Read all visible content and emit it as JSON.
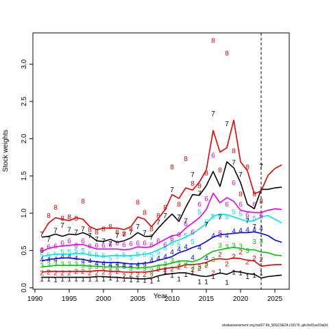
{
  "chart_data": {
    "type": "line",
    "title": "",
    "xlabel": "Year",
    "ylabel": "Stock weights",
    "xlim": [
      1989.7,
      2027.1
    ],
    "ylim": [
      -0.02,
      3.42
    ],
    "x_ticks": [
      1990,
      1995,
      2000,
      2005,
      2010,
      2015,
      2020,
      2025
    ],
    "y_ticks": [
      0.0,
      0.5,
      1.0,
      1.5,
      2.0,
      2.5,
      3.0
    ],
    "grid": false,
    "legend": "none",
    "vline_x": 2023,
    "footer": "stockassessment.org,had27.6b_WGCSE24,r18176.,gitc9c81ac53a0d",
    "series": [
      {
        "label": "1",
        "color": "#000000",
        "fit_x": [
          1991,
          1992,
          1993,
          1994,
          1995,
          1996,
          1997,
          1998,
          1999,
          2000,
          2001,
          2002,
          2003,
          2004,
          2005,
          2006,
          2007,
          2008,
          2009,
          2010,
          2011,
          2012,
          2013,
          2014,
          2015,
          2016,
          2017,
          2018,
          2019,
          2020,
          2021,
          2022,
          2023,
          2024,
          2025,
          2026
        ],
        "fit_y": [
          0.14,
          0.14,
          0.14,
          0.14,
          0.14,
          0.14,
          0.14,
          0.14,
          0.15,
          0.15,
          0.14,
          0.14,
          0.13,
          0.13,
          0.12,
          0.12,
          0.13,
          0.16,
          0.18,
          0.19,
          0.2,
          0.2,
          0.18,
          0.16,
          0.15,
          0.17,
          0.2,
          0.18,
          0.22,
          0.21,
          0.19,
          0.18,
          0.13,
          0.15,
          0.16,
          0.17
        ],
        "obs_x": [
          1991,
          1992,
          1993,
          1994,
          1995,
          1996,
          1997,
          1998,
          1999,
          2000,
          2001,
          2002,
          2003,
          2004,
          2005,
          2006,
          2007,
          2008,
          2009,
          2010,
          2011,
          2012,
          2013,
          2014,
          2015,
          2016,
          2017,
          2018,
          2019,
          2020,
          2021,
          2022,
          2023
        ],
        "obs_y": [
          0.12,
          0.12,
          0.11,
          0.12,
          0.12,
          0.12,
          0.12,
          0.12,
          0.12,
          0.12,
          0.13,
          0.12,
          0.12,
          0.11,
          0.11,
          0.1,
          0.09,
          0.12,
          0.22,
          0.17,
          0.12,
          0.18,
          0.2,
          0.08,
          0.08,
          0.15,
          0.22,
          0.07,
          0.21,
          0.2,
          0.15,
          0.17,
          0.2
        ]
      },
      {
        "label": "2",
        "color": "#e00000",
        "fit_x": [
          1991,
          1992,
          1993,
          1994,
          1995,
          1996,
          1997,
          1998,
          1999,
          2000,
          2001,
          2002,
          2003,
          2004,
          2005,
          2006,
          2007,
          2008,
          2009,
          2010,
          2011,
          2012,
          2013,
          2014,
          2015,
          2016,
          2017,
          2018,
          2019,
          2020,
          2021,
          2022,
          2023,
          2024,
          2025,
          2026
        ],
        "fit_y": [
          0.21,
          0.22,
          0.22,
          0.22,
          0.22,
          0.22,
          0.22,
          0.22,
          0.23,
          0.23,
          0.22,
          0.22,
          0.21,
          0.21,
          0.21,
          0.21,
          0.22,
          0.24,
          0.26,
          0.27,
          0.28,
          0.31,
          0.31,
          0.32,
          0.34,
          0.38,
          0.39,
          0.38,
          0.4,
          0.39,
          0.37,
          0.36,
          0.29,
          0.3,
          0.31,
          0.31
        ],
        "obs_x": [
          1991,
          1992,
          1993,
          1994,
          1995,
          1996,
          1997,
          1998,
          1999,
          2000,
          2001,
          2002,
          2003,
          2004,
          2005,
          2006,
          2007,
          2008,
          2009,
          2010,
          2011,
          2012,
          2013,
          2014,
          2015,
          2016,
          2017,
          2018,
          2019,
          2020,
          2021,
          2022,
          2023
        ],
        "obs_y": [
          0.2,
          0.21,
          0.2,
          0.2,
          0.2,
          0.22,
          0.22,
          0.2,
          0.2,
          0.21,
          0.21,
          0.22,
          0.16,
          0.18,
          0.18,
          0.18,
          0.16,
          0.25,
          0.24,
          0.25,
          0.28,
          0.3,
          0.24,
          0.26,
          0.3,
          0.2,
          0.45,
          0.32,
          0.42,
          0.48,
          0.35,
          0.4,
          0.38
        ]
      },
      {
        "label": "3",
        "color": "#00c000",
        "fit_x": [
          1991,
          1992,
          1993,
          1994,
          1995,
          1996,
          1997,
          1998,
          1999,
          2000,
          2001,
          2002,
          2003,
          2004,
          2005,
          2006,
          2007,
          2008,
          2009,
          2010,
          2011,
          2012,
          2013,
          2014,
          2015,
          2016,
          2017,
          2018,
          2019,
          2020,
          2021,
          2022,
          2023,
          2024,
          2025,
          2026
        ],
        "fit_y": [
          0.28,
          0.29,
          0.3,
          0.3,
          0.3,
          0.3,
          0.3,
          0.29,
          0.29,
          0.28,
          0.28,
          0.28,
          0.28,
          0.27,
          0.27,
          0.27,
          0.28,
          0.3,
          0.31,
          0.33,
          0.36,
          0.36,
          0.35,
          0.38,
          0.44,
          0.49,
          0.51,
          0.53,
          0.54,
          0.53,
          0.51,
          0.51,
          0.48,
          0.47,
          0.44,
          0.43
        ],
        "obs_x": [
          1991,
          1992,
          1993,
          1994,
          1995,
          1996,
          1997,
          1998,
          1999,
          2000,
          2001,
          2002,
          2003,
          2004,
          2005,
          2006,
          2007,
          2008,
          2009,
          2010,
          2011,
          2012,
          2013,
          2014,
          2015,
          2016,
          2017,
          2018,
          2019,
          2020,
          2021,
          2022,
          2023
        ],
        "obs_y": [
          0.3,
          0.31,
          0.32,
          0.32,
          0.32,
          0.32,
          0.3,
          0.28,
          0.29,
          0.28,
          0.28,
          0.29,
          0.29,
          0.26,
          0.28,
          0.26,
          0.23,
          0.28,
          0.32,
          0.37,
          0.32,
          0.33,
          0.28,
          0.28,
          0.32,
          0.38,
          0.57,
          0.55,
          0.57,
          0.56,
          0.5,
          0.62,
          0.63
        ]
      },
      {
        "label": "4",
        "color": "#0000e0",
        "fit_x": [
          1991,
          1992,
          1993,
          1994,
          1995,
          1996,
          1997,
          1998,
          1999,
          2000,
          2001,
          2002,
          2003,
          2004,
          2005,
          2006,
          2007,
          2008,
          2009,
          2010,
          2011,
          2012,
          2013,
          2014,
          2015,
          2016,
          2017,
          2018,
          2019,
          2020,
          2021,
          2022,
          2023,
          2024,
          2025,
          2026
        ],
        "fit_y": [
          0.36,
          0.38,
          0.39,
          0.4,
          0.4,
          0.39,
          0.38,
          0.36,
          0.35,
          0.34,
          0.34,
          0.34,
          0.33,
          0.32,
          0.32,
          0.33,
          0.34,
          0.37,
          0.39,
          0.42,
          0.47,
          0.5,
          0.54,
          0.57,
          0.62,
          0.68,
          0.71,
          0.72,
          0.73,
          0.74,
          0.74,
          0.75,
          0.73,
          0.7,
          0.64,
          0.61
        ],
        "obs_x": [
          1991,
          1992,
          1993,
          1994,
          1995,
          1996,
          1997,
          1998,
          1999,
          2000,
          2001,
          2002,
          2003,
          2004,
          2005,
          2006,
          2007,
          2008,
          2009,
          2010,
          2011,
          2012,
          2013,
          2014,
          2015,
          2016,
          2017,
          2018,
          2019,
          2020,
          2021,
          2022,
          2023
        ],
        "obs_y": [
          0.38,
          0.38,
          0.38,
          0.42,
          0.42,
          0.4,
          0.36,
          0.36,
          0.33,
          0.33,
          0.31,
          0.32,
          0.3,
          0.3,
          0.31,
          0.32,
          0.37,
          0.4,
          0.42,
          0.48,
          0.52,
          0.55,
          0.41,
          0.54,
          0.4,
          0.7,
          0.7,
          0.7,
          0.76,
          0.77,
          0.78,
          0.78,
          0.8
        ]
      },
      {
        "label": "5",
        "color": "#00e0e0",
        "fit_x": [
          1991,
          1992,
          1993,
          1994,
          1995,
          1996,
          1997,
          1998,
          1999,
          2000,
          2001,
          2002,
          2003,
          2004,
          2005,
          2006,
          2007,
          2008,
          2009,
          2010,
          2011,
          2012,
          2013,
          2014,
          2015,
          2016,
          2017,
          2018,
          2019,
          2020,
          2021,
          2022,
          2023,
          2024,
          2025,
          2026
        ],
        "fit_y": [
          0.42,
          0.44,
          0.45,
          0.45,
          0.45,
          0.46,
          0.46,
          0.44,
          0.43,
          0.42,
          0.43,
          0.43,
          0.43,
          0.43,
          0.44,
          0.45,
          0.47,
          0.51,
          0.55,
          0.61,
          0.64,
          0.68,
          0.73,
          0.79,
          0.86,
          0.96,
          0.99,
          0.98,
          0.95,
          0.92,
          0.89,
          0.9,
          0.95,
          0.97,
          0.92,
          0.87
        ],
        "obs_x": [
          1991,
          1992,
          1993,
          1994,
          1995,
          1996,
          1997,
          1998,
          1999,
          2000,
          2001,
          2002,
          2003,
          2004,
          2005,
          2006,
          2007,
          2008,
          2009,
          2010,
          2011,
          2012,
          2013,
          2014,
          2015,
          2016,
          2017,
          2018,
          2019,
          2020,
          2021,
          2022,
          2023
        ],
        "obs_y": [
          0.44,
          0.44,
          0.45,
          0.48,
          0.48,
          0.5,
          0.5,
          0.46,
          0.44,
          0.43,
          0.4,
          0.42,
          0.44,
          0.41,
          0.45,
          0.45,
          0.44,
          0.48,
          0.53,
          0.6,
          0.58,
          0.7,
          0.62,
          1.02,
          0.88,
          0.96,
          0.95,
          0.95,
          1.02,
          0.99,
          0.92,
          0.93,
          0.95
        ]
      },
      {
        "label": "6",
        "color": "#e000e0",
        "fit_x": [
          1991,
          1992,
          1993,
          1994,
          1995,
          1996,
          1997,
          1998,
          1999,
          2000,
          2001,
          2002,
          2003,
          2004,
          2005,
          2006,
          2007,
          2008,
          2009,
          2010,
          2011,
          2012,
          2013,
          2014,
          2015,
          2016,
          2017,
          2018,
          2019,
          2020,
          2021,
          2022,
          2023,
          2024,
          2025,
          2026
        ],
        "fit_y": [
          0.49,
          0.53,
          0.55,
          0.56,
          0.57,
          0.58,
          0.58,
          0.55,
          0.52,
          0.52,
          0.52,
          0.52,
          0.51,
          0.52,
          0.55,
          0.54,
          0.55,
          0.6,
          0.65,
          0.7,
          0.71,
          0.8,
          0.87,
          0.94,
          1.05,
          1.27,
          1.14,
          1.21,
          1.16,
          1.04,
          1.02,
          1.01,
          1.01,
          1.04,
          1.06,
          1.05
        ],
        "obs_x": [
          1991,
          1992,
          1993,
          1994,
          1995,
          1996,
          1997,
          1998,
          1999,
          2000,
          2001,
          2002,
          2003,
          2004,
          2005,
          2006,
          2007,
          2008,
          2009,
          2010,
          2011,
          2012,
          2013,
          2014,
          2015,
          2016,
          2017,
          2018,
          2019,
          2020,
          2021,
          2022,
          2023
        ],
        "obs_y": [
          0.51,
          0.55,
          0.56,
          0.6,
          0.63,
          0.57,
          0.63,
          0.56,
          0.57,
          0.57,
          0.58,
          0.6,
          0.58,
          0.59,
          0.6,
          0.6,
          0.58,
          0.63,
          0.58,
          0.66,
          0.71,
          0.86,
          0.75,
          1.12,
          1.2,
          1.78,
          0.74,
          1.12,
          1.41,
          1.12,
          0.98,
          1.12,
          0.98
        ]
      },
      {
        "label": "7",
        "color": "#000000",
        "fit_x": [
          1991,
          1992,
          1993,
          1994,
          1995,
          1996,
          1997,
          1998,
          1999,
          2000,
          2001,
          2002,
          2003,
          2004,
          2005,
          2006,
          2007,
          2008,
          2009,
          2010,
          2011,
          2012,
          2013,
          2014,
          2015,
          2016,
          2017,
          2018,
          2019,
          2020,
          2021,
          2022,
          2023,
          2024,
          2025,
          2026
        ],
        "fit_y": [
          0.68,
          0.69,
          0.72,
          0.69,
          0.72,
          0.71,
          0.74,
          0.7,
          0.63,
          0.62,
          0.65,
          0.61,
          0.63,
          0.67,
          0.74,
          0.69,
          0.69,
          0.8,
          0.9,
          0.99,
          0.89,
          1.08,
          1.25,
          1.24,
          1.37,
          1.56,
          1.36,
          1.69,
          1.61,
          1.41,
          1.12,
          1.06,
          1.32,
          1.32,
          1.34,
          1.35
        ],
        "obs_x": [
          1991,
          1992,
          1993,
          1994,
          1995,
          1996,
          1997,
          1998,
          1999,
          2000,
          2001,
          2002,
          2003,
          2004,
          2005,
          2006,
          2007,
          2008,
          2009,
          2010,
          2011,
          2012,
          2013,
          2014,
          2015,
          2016,
          2017,
          2018,
          2019,
          2020,
          2021,
          2022,
          2023
        ],
        "obs_y": [
          0.72,
          0.65,
          0.77,
          0.84,
          0.78,
          0.75,
          0.79,
          0.7,
          0.65,
          0.63,
          0.59,
          0.7,
          0.72,
          0.75,
          0.82,
          0.74,
          0.68,
          0.88,
          0.97,
          1.32,
          0.95,
          0.9,
          1.52,
          1.27,
          0.85,
          2.34,
          0.95,
          2.2,
          1.68,
          1.52,
          0.9,
          0.82,
          1.63
        ]
      },
      {
        "label": "8",
        "color": "#e00000",
        "fit_x": [
          1991,
          1992,
          1993,
          1994,
          1995,
          1996,
          1997,
          1998,
          1999,
          2000,
          2001,
          2002,
          2003,
          2004,
          2005,
          2006,
          2007,
          2008,
          2009,
          2010,
          2011,
          2012,
          2013,
          2014,
          2015,
          2016,
          2017,
          2018,
          2019,
          2020,
          2021,
          2022,
          2023,
          2024,
          2025,
          2026
        ],
        "fit_y": [
          0.72,
          0.87,
          0.94,
          0.92,
          0.9,
          0.94,
          0.92,
          0.82,
          0.78,
          0.8,
          0.8,
          0.8,
          0.78,
          0.82,
          0.95,
          0.92,
          0.82,
          0.93,
          1.05,
          1.25,
          1.2,
          1.34,
          1.31,
          1.42,
          1.58,
          2.11,
          1.82,
          1.88,
          2.25,
          1.69,
          1.57,
          1.26,
          1.3,
          1.51,
          1.6,
          1.65
        ],
        "obs_x": [
          1991,
          1992,
          1993,
          1994,
          1995,
          1996,
          1997,
          1998,
          1999,
          2000,
          2001,
          2002,
          2003,
          2004,
          2005,
          2006,
          2007,
          2008,
          2009,
          2010,
          2011,
          2012,
          2013,
          2014,
          2015,
          2016,
          2017,
          2018,
          2019,
          2020,
          2021,
          2022,
          2023
        ],
        "obs_y": [
          0.5,
          0.97,
          1.08,
          0.93,
          0.95,
          0.93,
          1.16,
          0.78,
          0.75,
          0.79,
          0.82,
          0.75,
          0.72,
          0.79,
          1.15,
          1.01,
          0.79,
          0.97,
          1.08,
          1.62,
          1.12,
          1.73,
          1.4,
          1.37,
          1.54,
          3.32,
          1.58,
          3.15,
          1.84,
          1.26,
          1.62,
          1.26,
          1.16
        ]
      }
    ]
  }
}
